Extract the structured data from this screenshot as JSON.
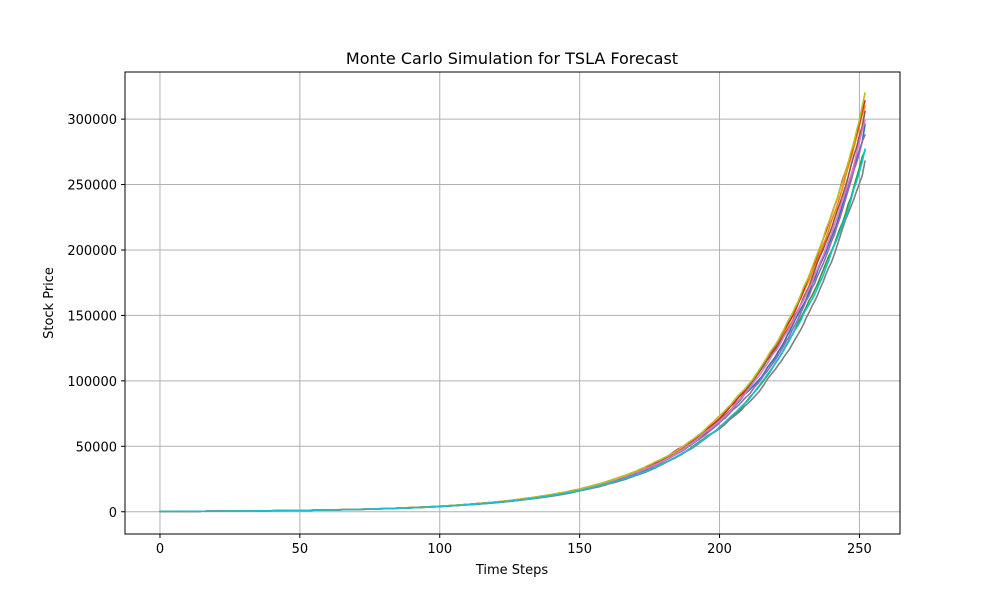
{
  "chart_data": {
    "type": "line",
    "title": "Monte Carlo Simulation for TSLA Forecast",
    "xlabel": "Time Steps",
    "ylabel": "Stock Price",
    "xlim": [
      -12.5,
      264.5
    ],
    "ylim": [
      -17000,
      336000
    ],
    "xticks": [
      0,
      50,
      100,
      150,
      200,
      250
    ],
    "yticks": [
      0,
      50000,
      100000,
      150000,
      200000,
      250000,
      300000
    ],
    "grid": true,
    "x_start": 0,
    "x_end": 252,
    "start_value": 248,
    "series": [
      {
        "color": "#1f77b4",
        "final": 296000
      },
      {
        "color": "#ff7f0e",
        "final": 310000
      },
      {
        "color": "#2ca02c",
        "final": 276000
      },
      {
        "color": "#d62728",
        "final": 314000
      },
      {
        "color": "#9467bd",
        "final": 288000
      },
      {
        "color": "#8c564b",
        "final": 306000
      },
      {
        "color": "#e377c2",
        "final": 299000
      },
      {
        "color": "#7f7f7f",
        "final": 268000
      },
      {
        "color": "#bcbd22",
        "final": 320000
      },
      {
        "color": "#17becf",
        "final": 277000
      }
    ]
  }
}
